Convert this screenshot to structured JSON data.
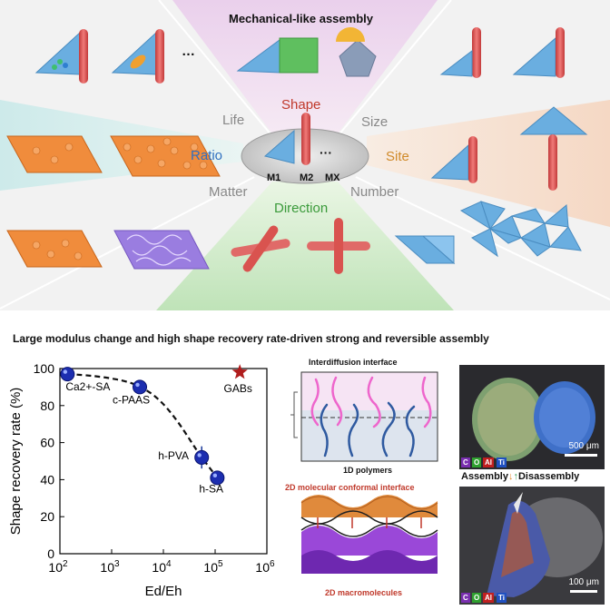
{
  "top": {
    "title": "Mechanical-like assembly",
    "center_labels": {
      "shape": "Shape",
      "life": "Life",
      "size": "Size",
      "ratio": "Ratio",
      "site": "Site",
      "matter": "Matter",
      "number": "Number",
      "direction": "Direction",
      "ellipsis_top": "…",
      "ellipsis_center": "···"
    },
    "module_labels": {
      "m1": "M1",
      "m2": "M2",
      "mx": "MX"
    },
    "colors": {
      "rod": "#d9534f",
      "prism": "#6aaee0",
      "cube": "#5fbf5f",
      "particle_block": "#f08c3c",
      "purple_block": "#9a7de0"
    }
  },
  "bottom": {
    "title": "Large modulus change and high shape recovery rate-driven strong and reversible assembly",
    "interdiffusion_title": "Interdiffusion interface",
    "polymers_label": "1D polymers",
    "conformal_title": "2D molecular conformal interface",
    "macromolecules_label": "2D macromolecules",
    "scale_top": "500 μm",
    "scale_bottom": "100 μm",
    "assembly_label": "Assembly",
    "disassembly_label": "Disassembly",
    "element_tags": [
      "C",
      "O",
      "Al",
      "Ti"
    ]
  },
  "chart_data": {
    "type": "scatter",
    "xlabel": "Ed/Eh",
    "ylabel": "Shape recovery rate (%)",
    "xscale": "log",
    "xlim": [
      100,
      1000000
    ],
    "ylim": [
      0,
      100
    ],
    "xticks": [
      "10^2",
      "10^3",
      "10^4",
      "10^5",
      "10^6"
    ],
    "yticks": [
      0,
      20,
      40,
      60,
      80,
      100
    ],
    "points": [
      {
        "label": "Ca2+-SA",
        "x": 140,
        "y": 97,
        "err": 1
      },
      {
        "label": "c-PAAS",
        "x": 3500,
        "y": 90,
        "err": 3
      },
      {
        "label": "h-PVA",
        "x": 55000,
        "y": 52,
        "err": 6
      },
      {
        "label": "h-SA",
        "x": 110000,
        "y": 41,
        "err": 1
      }
    ],
    "highlight": {
      "label": "GABs",
      "x": 300000,
      "y": 98,
      "marker": "star",
      "color": "#b01c1c"
    },
    "trend": "dashed"
  }
}
